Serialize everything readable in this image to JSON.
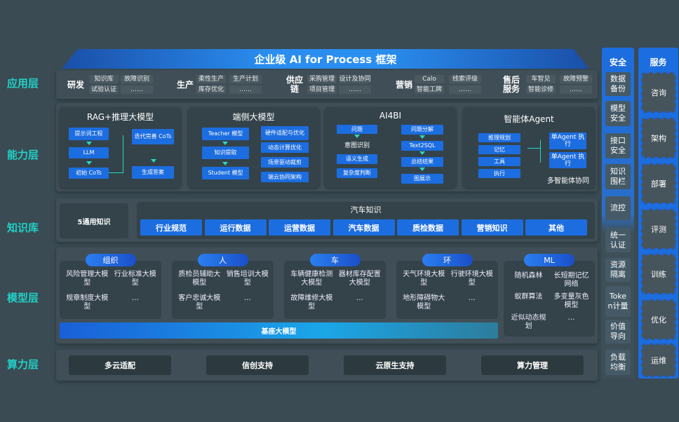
{
  "title": "企业级 AI for Process 框架",
  "layers": {
    "app": "应用层",
    "cap": "能力层",
    "kb": "知识库",
    "model": "模型层",
    "compute": "算力层"
  },
  "app_groups": [
    {
      "name": "研发",
      "items": [
        "知识库",
        "试验认证",
        "故障识别",
        "……"
      ]
    },
    {
      "name": "生产",
      "items": [
        "柔性生产",
        "库存优化",
        "生产计划",
        "……"
      ]
    },
    {
      "name": "供应链",
      "items": [
        "采购管理",
        "项目管理",
        "设计及协同",
        "……"
      ]
    },
    {
      "name": "营销",
      "items": [
        "Calo",
        "智能工牌",
        "线索评级",
        "……"
      ]
    },
    {
      "name": "售后服务",
      "items": [
        "车智见",
        "智能诊修",
        "故障预警",
        "……"
      ]
    }
  ],
  "capability": {
    "rag": {
      "title": "RAG+推理大模型",
      "items": [
        "提示词工程",
        "LLM",
        "初始 CoTs",
        "迭代完善 CoTs",
        "生成答案"
      ]
    },
    "edge": {
      "title": "端侧大模型",
      "items": [
        "Teacher 模型",
        "知识提取",
        "Student 模型",
        "硬件适配与优化",
        "动态计算优化",
        "场景驱动裁剪",
        "端云协同架构"
      ]
    },
    "ai4bi": {
      "title": "AI4BI",
      "items": [
        "问题",
        "意图识别",
        "语义生成",
        "复杂度判断",
        "问题分解",
        "Text2SQL",
        "总结结果",
        "图展示"
      ]
    },
    "agent": {
      "title": "智能体Agent",
      "items": [
        "推理规划",
        "记忆",
        "工具",
        "执行",
        "单Agent 执行",
        "单Agent 执行"
      ],
      "footer": "多智能体协同"
    }
  },
  "knowledge": {
    "general": "5通用知识",
    "auto_title": "汽车知识",
    "items": [
      "行业规范",
      "运行数据",
      "运营数据",
      "汽车数据",
      "质检数据",
      "营销知识",
      "其他"
    ]
  },
  "models": [
    {
      "tag": "组织",
      "items": [
        "风险管理大模型",
        "行业标准大模型",
        "规章制度大模型",
        "…"
      ]
    },
    {
      "tag": "人",
      "items": [
        "质检员辅助大模型",
        "销售培训大模型",
        "客户忠诚大模型",
        "…"
      ]
    },
    {
      "tag": "车",
      "items": [
        "车辆健康检测大模型",
        "器材库存配置大模型",
        "故障维修大模型",
        "…"
      ]
    },
    {
      "tag": "环",
      "items": [
        "天气环境大模型",
        "行驶环境大模型",
        "地形障碍物大模型",
        "…"
      ]
    },
    {
      "tag": "ML",
      "items": [
        "随机森林",
        "长短期记忆网络",
        "蚁群算法",
        "多变量灰色模型",
        "近似动态规划",
        "…"
      ]
    }
  ],
  "base_model": "基座大模型",
  "compute": [
    "多云适配",
    "信创支持",
    "云原生支持",
    "算力管理"
  ],
  "security": {
    "title": "安全",
    "items": [
      "数据备份",
      "模型安全",
      "接口安全",
      "知识围栏",
      "流控",
      "统一认证",
      "资源隔离",
      "Token计量",
      "价值导向",
      "负载均衡"
    ]
  },
  "services": {
    "title": "服务",
    "items": [
      "咨询",
      "架构",
      "部署",
      "评测",
      "训练",
      "优化",
      "运维"
    ]
  },
  "colors": {
    "background": "#3a4b53",
    "accent_blue": "#1c6de0",
    "layer_label": "#22d0c6"
  }
}
